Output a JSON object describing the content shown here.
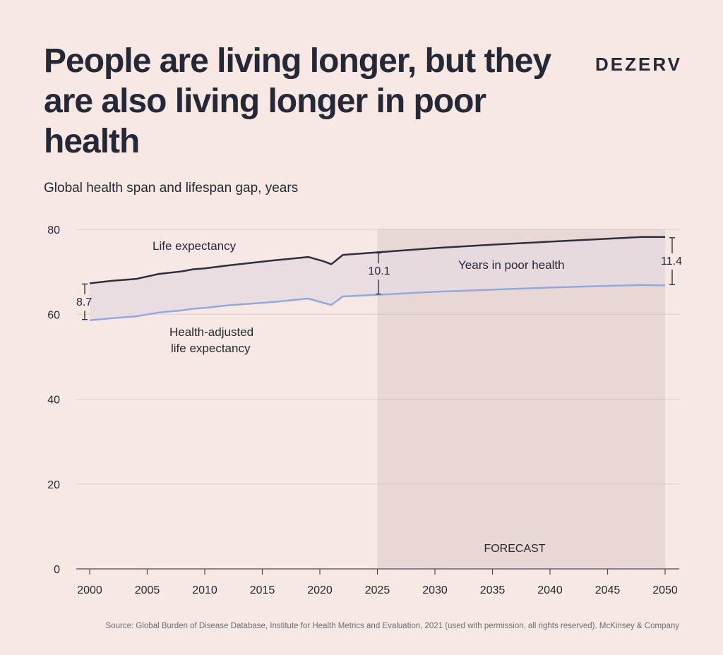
{
  "header": {
    "title": "People are living longer, but they are also living longer in poor health",
    "brand": "DEZERV",
    "subtitle": "Global health span and lifespan gap, years"
  },
  "source": "Source: Global Burden of Disease Database, Institute for Health Metrics and Evaluation, 2021 (used with permission, all rights reserved). McKinsey & Company",
  "colors": {
    "life_expectancy": "#2c2f3e",
    "health_adjusted": "#93a9dc",
    "gap_fill": "#e6dae0",
    "forecast_shade": "#b59aa2",
    "grid": "#dccfcb",
    "text": "#252836"
  },
  "chart_data": {
    "type": "area",
    "title": "Global health span and lifespan gap, years",
    "xlim": [
      2000,
      2050
    ],
    "ylim": [
      0,
      80
    ],
    "x_ticks": [
      "2000",
      "2005",
      "2010",
      "2015",
      "2020",
      "2025",
      "2030",
      "2035",
      "2040",
      "2045",
      "2050"
    ],
    "y_ticks": [
      "0",
      "20",
      "40",
      "60",
      "80"
    ],
    "grid": true,
    "forecast": {
      "label": "FORECAST",
      "from": 2025,
      "to": 2050
    },
    "series": [
      {
        "name": "Life expectancy",
        "points": [
          [
            2000,
            67.3
          ],
          [
            2002,
            67.9
          ],
          [
            2004,
            68.3
          ],
          [
            2006,
            69.5
          ],
          [
            2008,
            70.1
          ],
          [
            2009,
            70.6
          ],
          [
            2010,
            70.8
          ],
          [
            2012,
            71.5
          ],
          [
            2014,
            72.1
          ],
          [
            2016,
            72.7
          ],
          [
            2019,
            73.5
          ],
          [
            2020.3,
            72.5
          ],
          [
            2021,
            71.8
          ],
          [
            2022,
            74.0
          ],
          [
            2025,
            74.6
          ],
          [
            2030,
            75.6
          ],
          [
            2035,
            76.4
          ],
          [
            2040,
            77.1
          ],
          [
            2045,
            77.8
          ],
          [
            2048,
            78.2
          ],
          [
            2050,
            78.2
          ]
        ]
      },
      {
        "name": "Health-adjusted life expectancy",
        "points": [
          [
            2000,
            58.6
          ],
          [
            2002,
            59.1
          ],
          [
            2004,
            59.5
          ],
          [
            2006,
            60.4
          ],
          [
            2008,
            60.9
          ],
          [
            2009,
            61.3
          ],
          [
            2010,
            61.5
          ],
          [
            2012,
            62.1
          ],
          [
            2014,
            62.5
          ],
          [
            2016,
            62.9
          ],
          [
            2019,
            63.7
          ],
          [
            2020.3,
            62.7
          ],
          [
            2021,
            62.2
          ],
          [
            2022,
            64.2
          ],
          [
            2025,
            64.6
          ],
          [
            2030,
            65.3
          ],
          [
            2035,
            65.8
          ],
          [
            2040,
            66.3
          ],
          [
            2045,
            66.7
          ],
          [
            2048,
            66.9
          ],
          [
            2050,
            66.8
          ]
        ]
      }
    ],
    "gap_label": "Years in poor health",
    "gap_markers": [
      {
        "x": 2000,
        "top": 67.3,
        "bottom": 58.6,
        "label": "8.7"
      },
      {
        "x": 2025,
        "top": 74.6,
        "bottom": 64.6,
        "label": "10.1"
      },
      {
        "x": 2050,
        "top": 78.2,
        "bottom": 66.8,
        "label": "11.4"
      }
    ]
  }
}
